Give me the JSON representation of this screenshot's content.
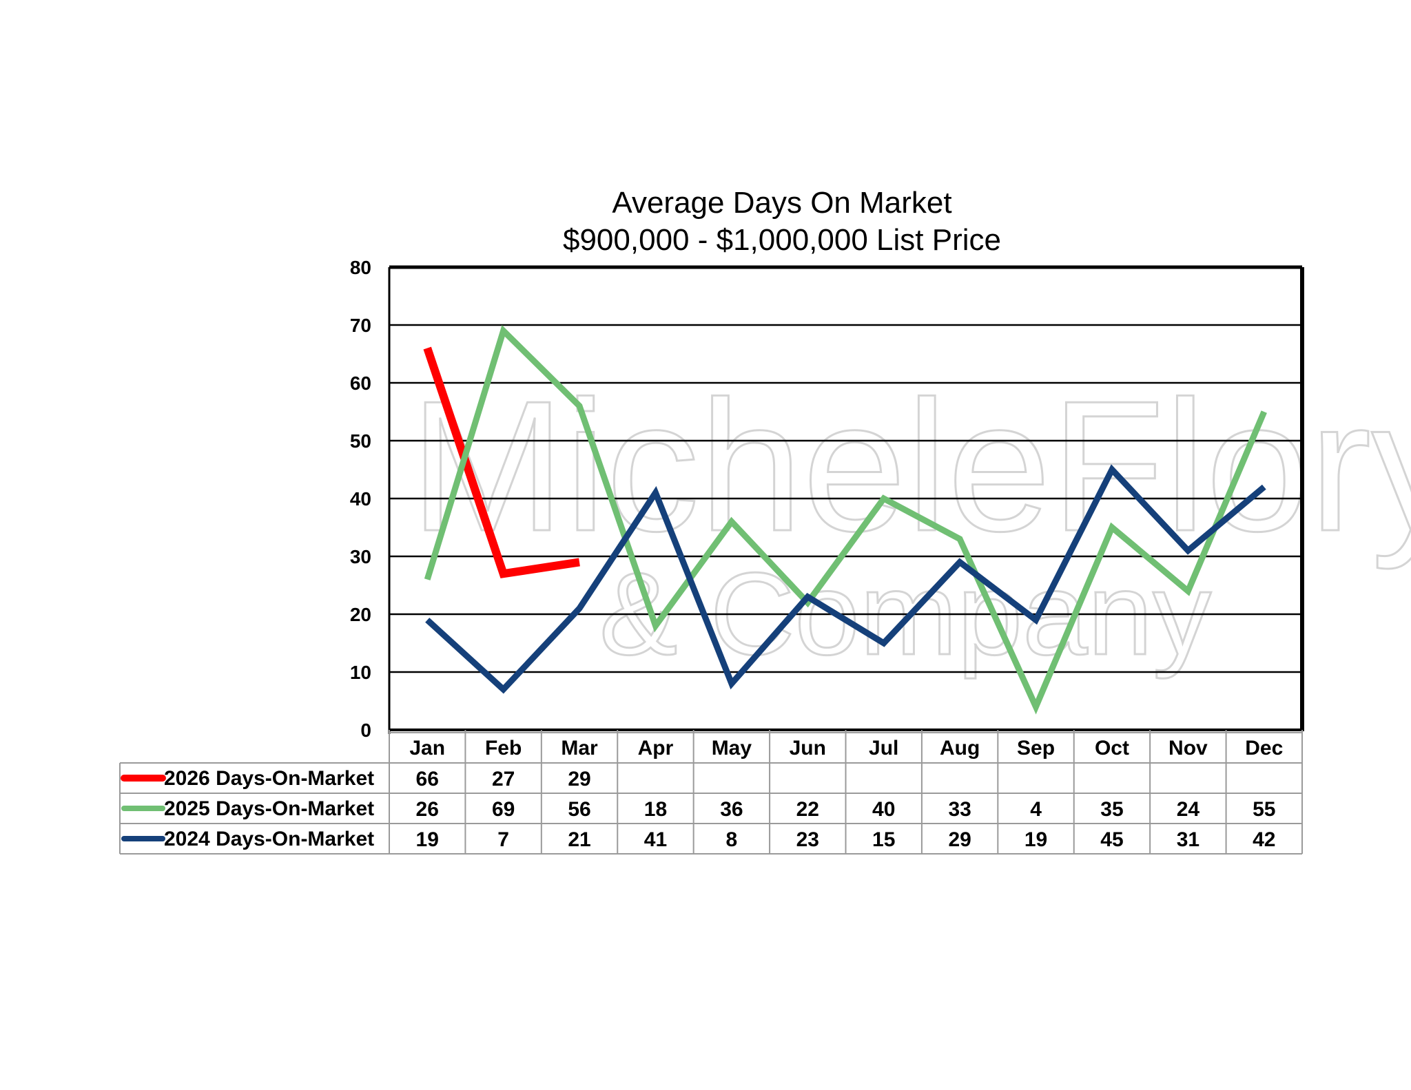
{
  "chart_data": {
    "type": "line",
    "title": "Average Days On Market",
    "subtitle": "$900,000 - $1,000,000 List Price",
    "xlabel": "",
    "ylabel": "",
    "ylim": [
      0,
      80
    ],
    "yticks": [
      0,
      10,
      20,
      30,
      40,
      50,
      60,
      70,
      80
    ],
    "grid": true,
    "legend": "data-table-left",
    "categories": [
      "Jan",
      "Feb",
      "Mar",
      "Apr",
      "May",
      "Jun",
      "Jul",
      "Aug",
      "Sep",
      "Oct",
      "Nov",
      "Dec"
    ],
    "series": [
      {
        "name": "2026 Days-On-Market",
        "color": "#ff0000",
        "values": [
          66,
          27,
          29,
          null,
          null,
          null,
          null,
          null,
          null,
          null,
          null,
          null
        ]
      },
      {
        "name": "2025 Days-On-Market",
        "color": "#70bf73",
        "values": [
          26,
          69,
          56,
          18,
          36,
          22,
          40,
          33,
          4,
          35,
          24,
          55
        ]
      },
      {
        "name": "2024 Days-On-Market",
        "color": "#15407a",
        "values": [
          19,
          7,
          21,
          41,
          8,
          23,
          15,
          29,
          19,
          45,
          31,
          42
        ]
      }
    ],
    "watermark": [
      "MicheleFlory",
      "& Company"
    ]
  }
}
